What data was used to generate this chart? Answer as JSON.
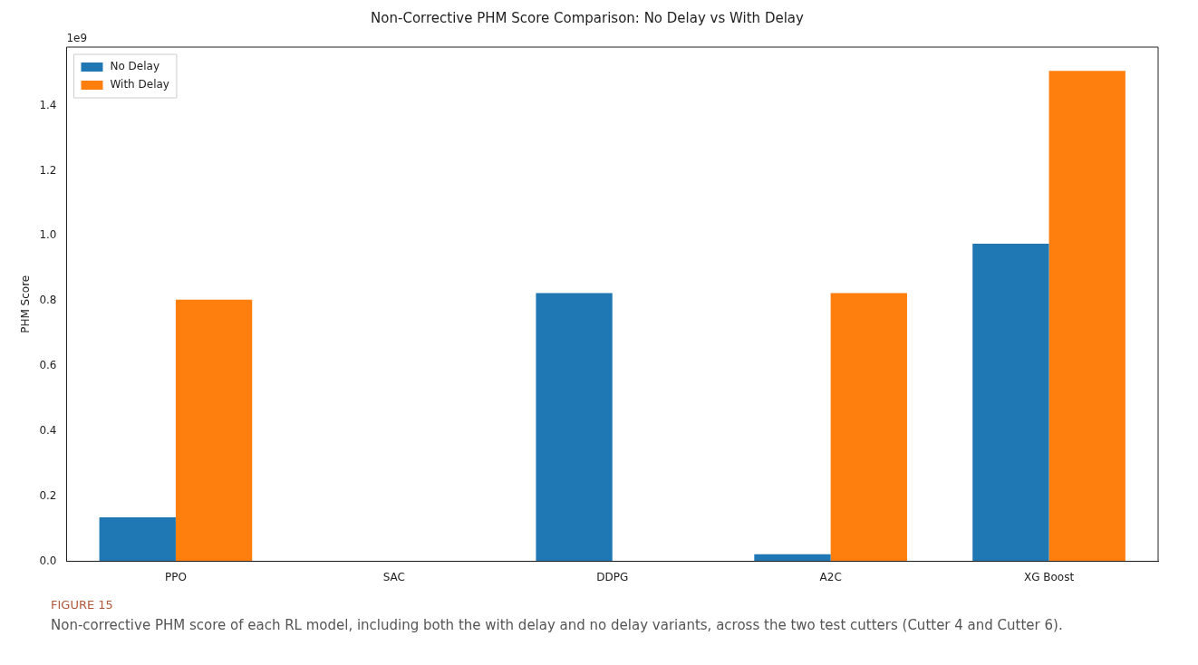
{
  "chart_data": {
    "type": "bar",
    "title": "Non-Corrective PHM Score Comparison: No Delay vs With Delay",
    "ylabel": "PHM Score",
    "categories": [
      "PPO",
      "SAC",
      "DDPG",
      "A2C",
      "XG Boost"
    ],
    "series": [
      {
        "name": "No Delay",
        "color": "#1f77b4",
        "values": [
          0.135,
          0,
          0.824,
          0.022,
          0.976
        ]
      },
      {
        "name": "With Delay",
        "color": "#ff7f0e",
        "values": [
          0.804,
          0,
          0,
          0.824,
          1.507
        ]
      }
    ],
    "ylim": [
      0,
      1.58
    ],
    "yticks": [
      {
        "value": 0,
        "label": "0.0"
      },
      {
        "value": 0.2,
        "label": "0.2"
      },
      {
        "value": 0.4,
        "label": "0.4"
      },
      {
        "value": 0.6,
        "label": "0.6"
      },
      {
        "value": 0.8,
        "label": "0.8"
      },
      {
        "value": 1,
        "label": "1.0"
      },
      {
        "value": 1.2,
        "label": "1.2"
      },
      {
        "value": 1.4,
        "label": "1.4"
      }
    ],
    "legend": "top left",
    "grid": false,
    "annotations": [
      "1e9",
      "FIGURE 15",
      "Non-corrective PHM score of each RL model, including both the with delay and no delay variants, across the two test cutters (Cutter 4 and Cutter 6)."
    ]
  }
}
